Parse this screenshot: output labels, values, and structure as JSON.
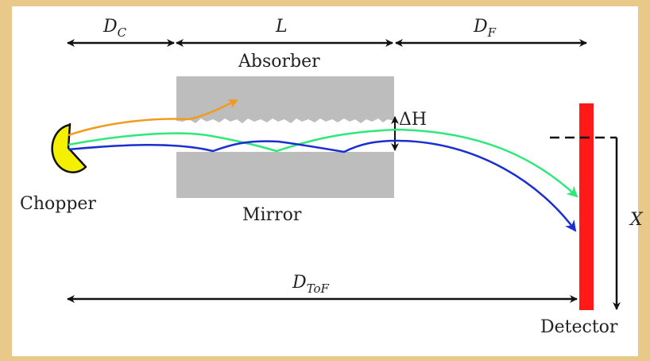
{
  "labels": {
    "d_c": "D",
    "d_c_sub": "C",
    "l": "L",
    "d_f": "D",
    "d_f_sub": "F",
    "absorber": "Absorber",
    "delta_h": "ΔH",
    "chopper": "Chopper",
    "mirror": "Mirror",
    "x": "X",
    "d_tof": "D",
    "d_tof_sub": "ToF",
    "detector": "Detector"
  },
  "colors": {
    "background_frame": "#e8c98a",
    "panel": "#ffffff",
    "absorber": "#bdbdbd",
    "mirror": "#bdbdbd",
    "chopper": "#f5f000",
    "detector": "#ff1a1a",
    "trajectory_orange": "#f39a1e",
    "trajectory_green": "#2ee87a",
    "trajectory_blue": "#1a2fd0"
  }
}
